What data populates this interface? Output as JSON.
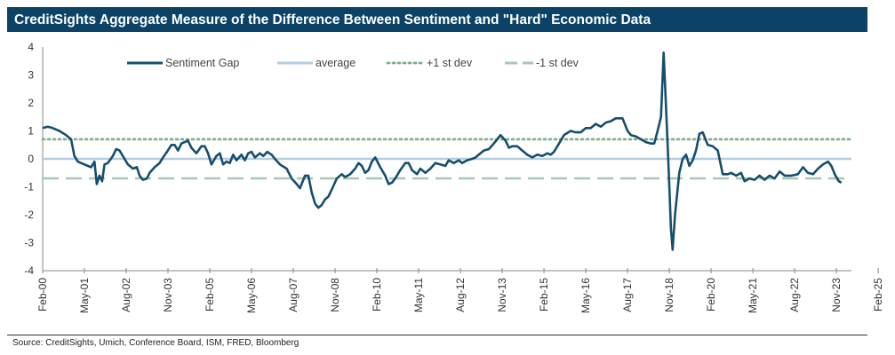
{
  "title": "CreditSights Aggregate Measure of the Difference Between Sentiment and \"Hard\" Economic Data",
  "source": "Source: CreditSights, Umich, Conference Board, ISM, FRED, Bloomberg",
  "colors": {
    "header_bg": "#0b4266",
    "series": "#164e6e",
    "average": "#b5cde0",
    "std_dev": "#7fac8a",
    "std_dev_dash": "#a9c7b5"
  },
  "chart_data": {
    "type": "line",
    "title": "CreditSights Aggregate Measure of the Difference Between Sentiment and \"Hard\" Economic Data",
    "xlabel": "",
    "ylabel": "",
    "ylim": [
      -4,
      4
    ],
    "yticks": [
      -4,
      -3,
      -2,
      -1,
      0,
      1,
      2,
      3,
      4
    ],
    "xtick_labels": [
      "Feb-00",
      "May-01",
      "Aug-02",
      "Nov-03",
      "Feb-05",
      "May-06",
      "Aug-07",
      "Nov-08",
      "Feb-10",
      "May-11",
      "Aug-12",
      "Nov-13",
      "Feb-15",
      "May-16",
      "Aug-17",
      "Nov-18",
      "Feb-20",
      "May-21",
      "Aug-22",
      "Nov-23",
      "Feb-25"
    ],
    "x_range": [
      "Feb-00",
      "Jun-25"
    ],
    "legend": [
      {
        "name": "Sentiment Gap",
        "style": "solid"
      },
      {
        "name": "average",
        "style": "solid"
      },
      {
        "name": "+1 st dev",
        "style": "dotted"
      },
      {
        "name": "-1 st dev",
        "style": "dashed"
      }
    ],
    "reference_lines": {
      "average": 0,
      "plus_1sd": 0.7,
      "minus_1sd": -0.7
    },
    "series": [
      {
        "name": "Sentiment Gap",
        "points": [
          [
            0.0,
            1.1
          ],
          [
            0.15,
            1.15
          ],
          [
            0.3,
            1.1
          ],
          [
            0.5,
            1.0
          ],
          [
            0.7,
            0.85
          ],
          [
            0.85,
            0.7
          ],
          [
            0.95,
            0.1
          ],
          [
            1.05,
            -0.1
          ],
          [
            1.25,
            -0.2
          ],
          [
            1.45,
            -0.3
          ],
          [
            1.55,
            -0.1
          ],
          [
            1.62,
            -0.9
          ],
          [
            1.7,
            -0.6
          ],
          [
            1.78,
            -0.8
          ],
          [
            1.85,
            -0.2
          ],
          [
            1.95,
            -0.15
          ],
          [
            2.1,
            0.1
          ],
          [
            2.2,
            0.35
          ],
          [
            2.3,
            0.3
          ],
          [
            2.45,
            0.0
          ],
          [
            2.55,
            -0.2
          ],
          [
            2.7,
            -0.35
          ],
          [
            2.82,
            -0.3
          ],
          [
            2.9,
            -0.6
          ],
          [
            3.0,
            -0.75
          ],
          [
            3.12,
            -0.7
          ],
          [
            3.2,
            -0.5
          ],
          [
            3.35,
            -0.3
          ],
          [
            3.5,
            -0.15
          ],
          [
            3.6,
            0.05
          ],
          [
            3.72,
            0.25
          ],
          [
            3.85,
            0.5
          ],
          [
            3.95,
            0.5
          ],
          [
            4.05,
            0.3
          ],
          [
            4.15,
            0.55
          ],
          [
            4.25,
            0.6
          ],
          [
            4.35,
            0.65
          ],
          [
            4.45,
            0.4
          ],
          [
            4.6,
            0.2
          ],
          [
            4.75,
            0.45
          ],
          [
            4.85,
            0.45
          ],
          [
            4.95,
            0.2
          ],
          [
            5.05,
            -0.2
          ],
          [
            5.2,
            0.1
          ],
          [
            5.3,
            0.2
          ],
          [
            5.4,
            -0.2
          ],
          [
            5.5,
            -0.1
          ],
          [
            5.6,
            -0.15
          ],
          [
            5.7,
            0.15
          ],
          [
            5.8,
            -0.05
          ],
          [
            5.95,
            0.15
          ],
          [
            6.05,
            -0.05
          ],
          [
            6.15,
            0.2
          ],
          [
            6.25,
            0.25
          ],
          [
            6.35,
            0.05
          ],
          [
            6.5,
            0.2
          ],
          [
            6.6,
            0.1
          ],
          [
            6.72,
            0.25
          ],
          [
            6.85,
            0.15
          ],
          [
            6.95,
            0.0
          ],
          [
            7.1,
            -0.2
          ],
          [
            7.3,
            -0.35
          ],
          [
            7.45,
            -0.7
          ],
          [
            7.6,
            -0.9
          ],
          [
            7.7,
            -1.05
          ],
          [
            7.85,
            -0.6
          ],
          [
            7.95,
            -0.6
          ],
          [
            8.05,
            -1.2
          ],
          [
            8.15,
            -1.6
          ],
          [
            8.25,
            -1.75
          ],
          [
            8.35,
            -1.65
          ],
          [
            8.45,
            -1.45
          ],
          [
            8.55,
            -1.35
          ],
          [
            8.65,
            -1.1
          ],
          [
            8.8,
            -0.7
          ],
          [
            8.95,
            -0.55
          ],
          [
            9.05,
            -0.65
          ],
          [
            9.2,
            -0.55
          ],
          [
            9.35,
            -0.35
          ],
          [
            9.45,
            -0.15
          ],
          [
            9.55,
            -0.25
          ],
          [
            9.65,
            -0.5
          ],
          [
            9.75,
            -0.4
          ],
          [
            9.85,
            -0.1
          ],
          [
            9.95,
            0.05
          ],
          [
            10.1,
            -0.3
          ],
          [
            10.25,
            -0.6
          ],
          [
            10.35,
            -0.9
          ],
          [
            10.45,
            -0.85
          ],
          [
            10.55,
            -0.7
          ],
          [
            10.7,
            -0.4
          ],
          [
            10.85,
            -0.15
          ],
          [
            10.95,
            -0.15
          ],
          [
            11.05,
            -0.4
          ],
          [
            11.2,
            -0.55
          ],
          [
            11.3,
            -0.35
          ],
          [
            11.45,
            -0.5
          ],
          [
            11.6,
            -0.35
          ],
          [
            11.75,
            -0.15
          ],
          [
            11.9,
            -0.2
          ],
          [
            12.05,
            -0.25
          ],
          [
            12.15,
            -0.05
          ],
          [
            12.3,
            -0.15
          ],
          [
            12.45,
            -0.05
          ],
          [
            12.55,
            -0.15
          ],
          [
            12.7,
            -0.05
          ],
          [
            12.85,
            0.0
          ],
          [
            12.95,
            0.05
          ],
          [
            13.05,
            0.15
          ],
          [
            13.2,
            0.3
          ],
          [
            13.35,
            0.35
          ],
          [
            13.5,
            0.55
          ],
          [
            13.7,
            0.85
          ],
          [
            13.85,
            0.65
          ],
          [
            13.95,
            0.4
          ],
          [
            14.05,
            0.45
          ],
          [
            14.2,
            0.45
          ],
          [
            14.35,
            0.3
          ],
          [
            14.5,
            0.15
          ],
          [
            14.65,
            0.05
          ],
          [
            14.8,
            0.15
          ],
          [
            14.95,
            0.1
          ],
          [
            15.1,
            0.2
          ],
          [
            15.2,
            0.15
          ],
          [
            15.3,
            0.25
          ],
          [
            15.45,
            0.55
          ],
          [
            15.6,
            0.85
          ],
          [
            15.8,
            1.0
          ],
          [
            15.95,
            0.95
          ],
          [
            16.1,
            0.95
          ],
          [
            16.25,
            1.1
          ],
          [
            16.4,
            1.1
          ],
          [
            16.55,
            1.25
          ],
          [
            16.7,
            1.15
          ],
          [
            16.85,
            1.3
          ],
          [
            17.0,
            1.35
          ],
          [
            17.15,
            1.45
          ],
          [
            17.35,
            1.45
          ],
          [
            17.5,
            1.0
          ],
          [
            17.6,
            0.85
          ],
          [
            17.75,
            0.8
          ],
          [
            17.9,
            0.7
          ],
          [
            18.05,
            0.6
          ],
          [
            18.2,
            0.55
          ],
          [
            18.3,
            0.55
          ],
          [
            18.4,
            1.0
          ],
          [
            18.5,
            1.5
          ],
          [
            18.58,
            3.8
          ],
          [
            18.64,
            2.2
          ],
          [
            18.7,
            0.5
          ],
          [
            18.75,
            -1.0
          ],
          [
            18.8,
            -2.5
          ],
          [
            18.85,
            -3.25
          ],
          [
            18.92,
            -2.0
          ],
          [
            19.05,
            -0.5
          ],
          [
            19.15,
            0.0
          ],
          [
            19.25,
            0.15
          ],
          [
            19.35,
            -0.25
          ],
          [
            19.45,
            -0.05
          ],
          [
            19.55,
            0.3
          ],
          [
            19.65,
            0.9
          ],
          [
            19.75,
            0.95
          ],
          [
            19.9,
            0.5
          ],
          [
            20.05,
            0.45
          ],
          [
            20.2,
            0.3
          ],
          [
            20.35,
            -0.55
          ],
          [
            20.5,
            -0.55
          ],
          [
            20.6,
            -0.5
          ],
          [
            20.75,
            -0.6
          ],
          [
            20.9,
            -0.5
          ],
          [
            21.0,
            -0.8
          ],
          [
            21.15,
            -0.7
          ],
          [
            21.3,
            -0.75
          ],
          [
            21.45,
            -0.6
          ],
          [
            21.6,
            -0.75
          ],
          [
            21.75,
            -0.6
          ],
          [
            21.9,
            -0.7
          ],
          [
            22.05,
            -0.45
          ],
          [
            22.2,
            -0.6
          ],
          [
            22.4,
            -0.6
          ],
          [
            22.6,
            -0.55
          ],
          [
            22.75,
            -0.3
          ],
          [
            22.9,
            -0.5
          ],
          [
            23.05,
            -0.55
          ],
          [
            23.2,
            -0.35
          ],
          [
            23.35,
            -0.2
          ],
          [
            23.5,
            -0.1
          ],
          [
            23.6,
            -0.25
          ],
          [
            23.7,
            -0.55
          ],
          [
            23.82,
            -0.8
          ],
          [
            23.9,
            -0.85
          ]
        ]
      }
    ]
  }
}
